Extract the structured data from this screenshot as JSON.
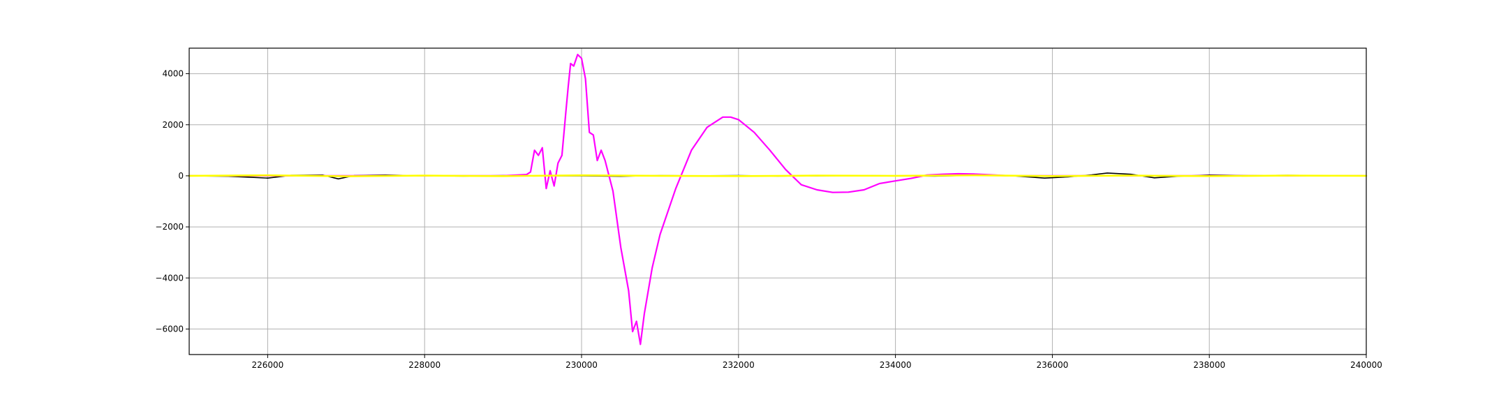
{
  "chart_data": {
    "type": "line",
    "title": "",
    "xlabel": "",
    "ylabel": "",
    "xlim": [
      225000,
      240000
    ],
    "ylim": [
      -7000,
      5000
    ],
    "grid": true,
    "legend": "none",
    "x_ticks": [
      226000,
      228000,
      230000,
      232000,
      234000,
      236000,
      238000,
      240000
    ],
    "x_tick_labels": [
      "226000",
      "228000",
      "230000",
      "232000",
      "234000",
      "236000",
      "238000",
      "240000"
    ],
    "y_ticks": [
      4000,
      2000,
      0,
      -2000,
      -4000,
      -6000
    ],
    "y_tick_labels": [
      "4000",
      "2000",
      "0",
      "−2000",
      "−4000",
      "−6000"
    ],
    "series": [
      {
        "color": "#000000",
        "x": [
          225000,
          225500,
          225800,
          226000,
          226300,
          226700,
          226900,
          227100,
          227500,
          228000,
          228500,
          229000,
          229500,
          230000,
          230500,
          231000,
          231500,
          232000,
          232500,
          233000,
          233500,
          234000,
          234500,
          235000,
          235500,
          235900,
          236200,
          236500,
          236700,
          237000,
          237300,
          237600,
          238000,
          238500,
          239000,
          239500,
          240000
        ],
        "y": [
          0,
          -20,
          -60,
          -90,
          20,
          30,
          -120,
          10,
          30,
          0,
          -10,
          10,
          0,
          0,
          -20,
          10,
          0,
          10,
          -10,
          0,
          10,
          0,
          -10,
          20,
          0,
          -90,
          -40,
          40,
          110,
          60,
          -80,
          -20,
          30,
          10,
          20,
          10,
          0
        ]
      },
      {
        "color": "#ff00ff",
        "x": [
          225000,
          229000,
          229300,
          229350,
          229400,
          229450,
          229500,
          229550,
          229600,
          229650,
          229700,
          229750,
          229800,
          229830,
          229860,
          229900,
          229950,
          230000,
          230050,
          230100,
          230150,
          230200,
          230250,
          230300,
          230400,
          230500,
          230600,
          230650,
          230700,
          230750,
          230800,
          230900,
          231000,
          231200,
          231400,
          231600,
          231800,
          231900,
          232000,
          232200,
          232400,
          232600,
          232800,
          233000,
          233200,
          233400,
          233600,
          233800,
          234000,
          234200,
          234400,
          234600,
          234800,
          235000,
          235200,
          235400,
          235600,
          240000
        ],
        "y": [
          0,
          0,
          50,
          150,
          1000,
          800,
          1100,
          -500,
          200,
          -400,
          500,
          800,
          2500,
          3500,
          4400,
          4300,
          4750,
          4600,
          3800,
          1700,
          1600,
          600,
          1000,
          600,
          -600,
          -2800,
          -4500,
          -6100,
          -5700,
          -6600,
          -5400,
          -3600,
          -2300,
          -500,
          1000,
          1900,
          2300,
          2300,
          2200,
          1700,
          1000,
          250,
          -350,
          -550,
          -650,
          -640,
          -550,
          -300,
          -200,
          -100,
          30,
          60,
          80,
          70,
          40,
          10,
          0,
          0
        ]
      },
      {
        "color": "#ffff00",
        "x": [
          225000,
          226000,
          227000,
          228000,
          229000,
          230000,
          231000,
          232000,
          233000,
          234000,
          235000,
          236000,
          237000,
          238000,
          239000,
          240000
        ],
        "y": [
          0,
          20,
          -20,
          10,
          -10,
          20,
          0,
          -10,
          10,
          0,
          20,
          -10,
          10,
          -10,
          10,
          0
        ]
      }
    ]
  }
}
